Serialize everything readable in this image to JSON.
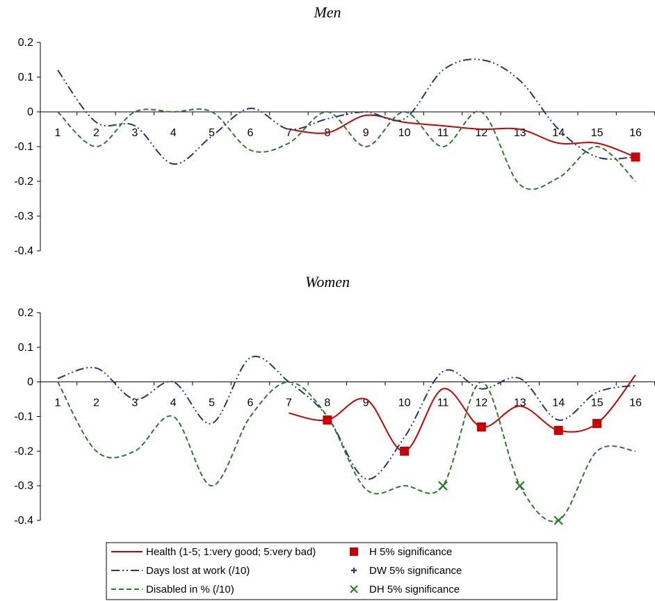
{
  "chart_data": [
    {
      "type": "line",
      "title": "Men",
      "categories": [
        "1",
        "2",
        "3",
        "4",
        "5",
        "6",
        "7",
        "8",
        "9",
        "10",
        "11",
        "12",
        "13",
        "14",
        "15",
        "16"
      ],
      "yticks": [
        "0.2",
        "0.1",
        "0",
        "-0.1",
        "-0.2",
        "-0.3",
        "-0.4"
      ],
      "ylim": [
        -0.4,
        0.2
      ],
      "grid": false,
      "series": [
        {
          "name": "Health (1-5; 1:very good; 5:very bad)",
          "color": "#cc0000",
          "style": "solid",
          "values": [
            null,
            null,
            null,
            null,
            null,
            null,
            -0.05,
            -0.06,
            -0.01,
            -0.03,
            -0.04,
            -0.05,
            -0.05,
            -0.09,
            -0.09,
            -0.13
          ]
        },
        {
          "name": "Days lost at work (/10)",
          "color": "#1f3a6e",
          "style": "dash-dot-dot",
          "values": [
            0.12,
            -0.03,
            -0.04,
            -0.15,
            -0.07,
            0.01,
            -0.05,
            -0.02,
            0.0,
            -0.02,
            0.12,
            0.15,
            0.09,
            -0.05,
            -0.13,
            -0.13
          ]
        },
        {
          "name": "Disabled in % (/10)",
          "color": "#2a7a2a",
          "style": "dashed",
          "values": [
            0.0,
            -0.1,
            0.0,
            0.0,
            0.0,
            -0.11,
            -0.09,
            0.0,
            -0.1,
            0.0,
            -0.1,
            0.0,
            -0.21,
            -0.19,
            -0.1,
            -0.2
          ]
        }
      ],
      "significance": {
        "H": [
          16
        ],
        "DW": [],
        "DH": []
      }
    },
    {
      "type": "line",
      "title": "Women",
      "categories": [
        "1",
        "2",
        "3",
        "4",
        "5",
        "6",
        "7",
        "8",
        "9",
        "10",
        "11",
        "12",
        "13",
        "14",
        "15",
        "16"
      ],
      "yticks": [
        "0.2",
        "0.1",
        "0",
        "-0.1",
        "-0.2",
        "-0.3",
        "-0.4"
      ],
      "ylim": [
        -0.4,
        0.2
      ],
      "grid": false,
      "series": [
        {
          "name": "Health (1-5; 1:very good; 5:very bad)",
          "color": "#cc0000",
          "style": "solid",
          "values": [
            null,
            null,
            null,
            null,
            null,
            null,
            -0.09,
            -0.11,
            -0.05,
            -0.2,
            -0.02,
            -0.13,
            -0.07,
            -0.14,
            -0.12,
            0.02
          ]
        },
        {
          "name": "Days lost at work (/10)",
          "color": "#1f3a6e",
          "style": "dash-dot-dot",
          "values": [
            0.01,
            0.04,
            -0.05,
            0.0,
            -0.12,
            0.07,
            0.0,
            -0.1,
            -0.28,
            -0.16,
            0.03,
            -0.02,
            0.01,
            -0.11,
            -0.03,
            -0.01
          ]
        },
        {
          "name": "Disabled in % (/10)",
          "color": "#2a7a2a",
          "style": "dashed",
          "values": [
            0.0,
            -0.2,
            -0.2,
            -0.1,
            -0.3,
            -0.1,
            0.0,
            -0.1,
            -0.31,
            -0.3,
            -0.3,
            0.0,
            -0.3,
            -0.4,
            -0.2,
            -0.2
          ]
        }
      ],
      "significance": {
        "H": [
          8,
          10,
          12,
          14,
          15
        ],
        "DW": [],
        "DH": [
          11,
          13,
          14
        ]
      }
    }
  ],
  "legend": {
    "items": [
      {
        "label": "Health (1-5; 1:very good; 5:very bad)",
        "kind": "line",
        "color": "#cc0000",
        "style": "solid"
      },
      {
        "label": "H 5% significance",
        "kind": "marker",
        "marker": "square",
        "color": "#cc0000"
      },
      {
        "label": "Days lost at work (/10)",
        "kind": "line",
        "color": "#1f3a6e",
        "style": "dash-dot-dot"
      },
      {
        "label": "DW 5% significance",
        "kind": "marker",
        "marker": "plus",
        "color": "#1f3a6e"
      },
      {
        "label": "Disabled in % (/10)",
        "kind": "line",
        "color": "#2a7a2a",
        "style": "dashed"
      },
      {
        "label": "DH 5% significance",
        "kind": "marker",
        "marker": "x",
        "color": "#2a7a2a"
      }
    ]
  }
}
